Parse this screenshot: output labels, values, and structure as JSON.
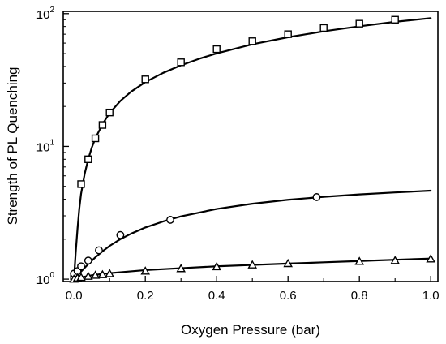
{
  "chart_data": {
    "type": "scatter",
    "title": "",
    "xlabel": "Oxygen Pressure (bar)",
    "ylabel": "Strength of PL Quenching",
    "xlim": [
      -0.03,
      1.02
    ],
    "ylim": [
      0.96,
      104
    ],
    "yscale": "log",
    "grid": false,
    "xticks": [
      {
        "value": 0.0,
        "label": "0.0"
      },
      {
        "value": 0.2,
        "label": "0.2"
      },
      {
        "value": 0.4,
        "label": "0.4"
      },
      {
        "value": 0.6,
        "label": "0.6"
      },
      {
        "value": 0.8,
        "label": "0.8"
      },
      {
        "value": 1.0,
        "label": "1.0"
      }
    ],
    "yticks": [
      {
        "value": 1,
        "base": "10",
        "exp": "0"
      },
      {
        "value": 10,
        "base": "10",
        "exp": "1"
      },
      {
        "value": 100,
        "base": "10",
        "exp": "2"
      }
    ],
    "series": [
      {
        "marker": "square",
        "x": [
          0.0,
          0.02,
          0.04,
          0.06,
          0.08,
          0.1,
          0.2,
          0.3,
          0.4,
          0.5,
          0.6,
          0.7,
          0.8,
          0.9
        ],
        "y": [
          1.05,
          5.2,
          8.0,
          11.5,
          14.5,
          18.0,
          32.0,
          43.0,
          54.0,
          62.0,
          70.0,
          78.0,
          84.0,
          90.0
        ],
        "fit_x": [
          0.0,
          0.005,
          0.01,
          0.015,
          0.02,
          0.03,
          0.04,
          0.05,
          0.06,
          0.08,
          0.1,
          0.13,
          0.16,
          0.2,
          0.25,
          0.3,
          0.35,
          0.4,
          0.5,
          0.6,
          0.7,
          0.8,
          0.9,
          1.0
        ],
        "fit_y": [
          1.0,
          1.6,
          2.4,
          3.4,
          4.4,
          6.2,
          8.0,
          9.8,
          11.5,
          14.7,
          17.8,
          22.0,
          25.8,
          30.5,
          35.8,
          40.8,
          45.6,
          50.2,
          58.8,
          66.4,
          73.6,
          80.2,
          86.8,
          92.5
        ]
      },
      {
        "marker": "circle",
        "x": [
          0.0,
          0.01,
          0.02,
          0.04,
          0.07,
          0.13,
          0.27,
          0.68
        ],
        "y": [
          1.1,
          1.15,
          1.25,
          1.38,
          1.65,
          2.15,
          2.8,
          4.15
        ],
        "fit_x": [
          0.0,
          0.01,
          0.02,
          0.04,
          0.06,
          0.08,
          0.1,
          0.13,
          0.16,
          0.2,
          0.25,
          0.3,
          0.4,
          0.5,
          0.6,
          0.7,
          0.8,
          0.9,
          1.0
        ],
        "fit_y": [
          1.0,
          1.07,
          1.14,
          1.3,
          1.46,
          1.62,
          1.78,
          2.0,
          2.2,
          2.45,
          2.72,
          2.97,
          3.38,
          3.7,
          3.96,
          4.17,
          4.35,
          4.5,
          4.64
        ]
      },
      {
        "marker": "triangle",
        "x": [
          0.0,
          0.01,
          0.02,
          0.04,
          0.06,
          0.08,
          0.1,
          0.2,
          0.3,
          0.4,
          0.5,
          0.6,
          0.8,
          0.9,
          1.0
        ],
        "y": [
          1.0,
          1.02,
          1.03,
          1.05,
          1.07,
          1.08,
          1.1,
          1.15,
          1.2,
          1.24,
          1.28,
          1.31,
          1.36,
          1.38,
          1.42
        ],
        "fit_x": [
          0.0,
          0.02,
          0.05,
          0.1,
          0.15,
          0.2,
          0.3,
          0.4,
          0.5,
          0.6,
          0.7,
          0.8,
          0.9,
          1.0
        ],
        "fit_y": [
          1.0,
          1.03,
          1.07,
          1.11,
          1.14,
          1.17,
          1.21,
          1.25,
          1.28,
          1.31,
          1.34,
          1.37,
          1.4,
          1.43
        ]
      }
    ]
  }
}
